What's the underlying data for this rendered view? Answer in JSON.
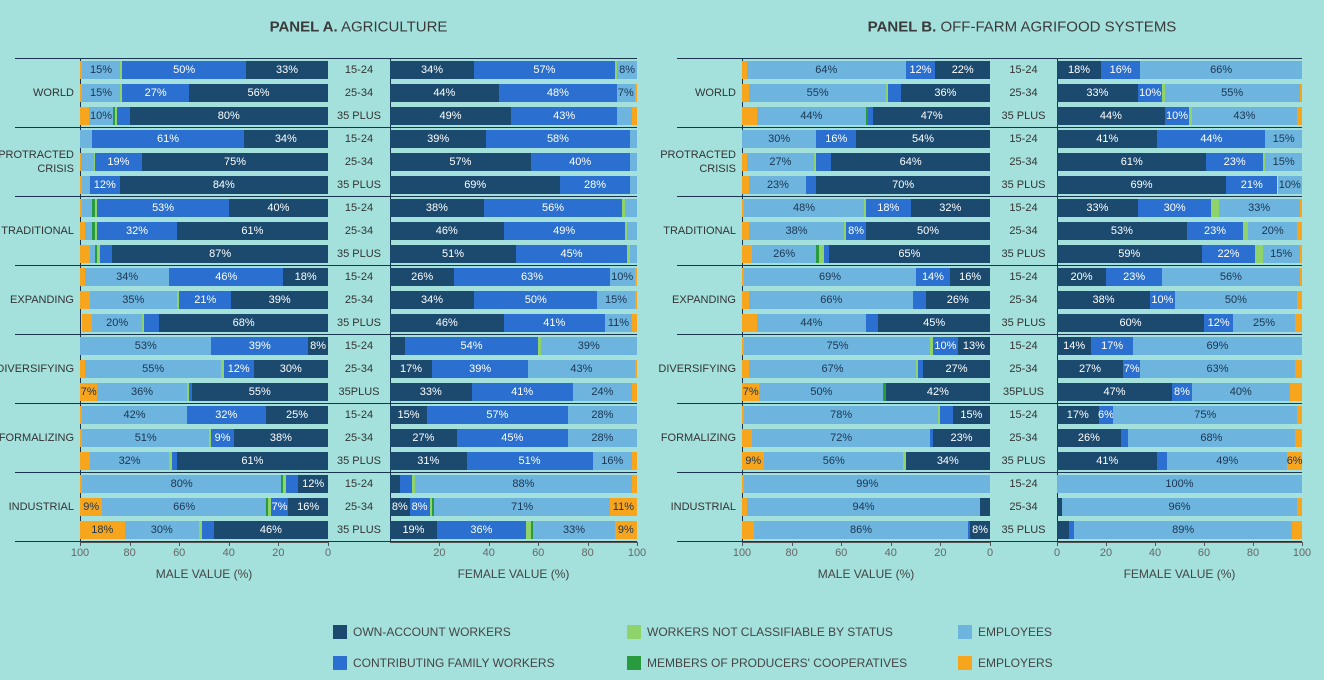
{
  "chart_data": [
    {
      "type": "bar",
      "title_prefix": "PANEL A.",
      "title": "AGRICULTURE",
      "groups": [
        "WORLD",
        "PROTRACTED CRISIS",
        "TRADITIONAL",
        "EXPANDING",
        "DIVERSIFYING",
        "FORMALIZING",
        "INDUSTRIAL"
      ],
      "categories": [
        "15-24",
        "25-34",
        "35 PLUS",
        "15-24",
        "25-34",
        "35 PLUS",
        "15-24",
        "25-34",
        "35 PLUS",
        "15-24",
        "25-34",
        "35 PLUS",
        "15-24",
        "25-34",
        "35PLUS",
        "15-24",
        "25-34",
        "35 PLUS",
        "15-24",
        "25-34",
        "35 PLUS"
      ],
      "xlabel": "MALE VALUE (%)",
      "xlim": [
        100,
        0
      ],
      "xticks": [
        100,
        80,
        60,
        40,
        20,
        0
      ],
      "series": [
        {
          "name": "OWN-ACCOUNT WORKERS",
          "color": "#1b4a6e",
          "values": [
            33,
            56,
            80,
            34,
            75,
            84,
            40,
            61,
            87,
            18,
            39,
            68,
            8,
            30,
            55,
            25,
            38,
            61,
            12,
            16,
            46
          ],
          "value_labels": [
            "33%",
            "56%",
            "80%",
            "34%",
            "75%",
            "84%",
            "40%",
            "61%",
            "87%",
            "18%",
            "39%",
            "68%",
            "8%",
            "30%",
            "55%",
            "25%",
            "38%",
            "61%",
            "12%",
            "16%",
            "46%"
          ]
        },
        {
          "name": "CONTRIBUTING FAMILY WORKERS",
          "color": "#2b6fd0",
          "values": [
            50,
            27,
            5,
            61,
            19,
            12,
            53,
            32,
            5,
            46,
            21,
            6,
            39,
            12,
            1,
            32,
            9,
            2,
            5,
            7,
            5
          ],
          "value_labels": [
            "50%",
            "27%",
            null,
            "61%",
            "19%",
            "12%",
            "53%",
            "32%",
            null,
            "46%",
            "21%",
            null,
            "39%",
            "12%",
            null,
            "32%",
            "9%",
            null,
            null,
            "7%",
            null
          ]
        },
        {
          "name": "WORKERS NOT CLASSIFIABLE BY STATUS",
          "color": "#8fd46a",
          "values": [
            1,
            1,
            1,
            0,
            0.5,
            0,
            1,
            1,
            1,
            0,
            1,
            1,
            0,
            1,
            1,
            0,
            1,
            1,
            1,
            1,
            1
          ]
        },
        {
          "name": "MEMBERS OF PRODUCERS' COOPERATIVES",
          "color": "#2a9a3e",
          "values": [
            0,
            0,
            0.5,
            0,
            0,
            0,
            1,
            1,
            1,
            0,
            0,
            0,
            0,
            0,
            0,
            0,
            0,
            0,
            1,
            1,
            0
          ]
        },
        {
          "name": "EMPLOYEES",
          "color": "#6db4de",
          "values": [
            15,
            15,
            10,
            5,
            5,
            3,
            4,
            3,
            2,
            34,
            35,
            20,
            53,
            55,
            36,
            42,
            51,
            32,
            80,
            66,
            30
          ],
          "value_labels": [
            "15%",
            "15%",
            "10%",
            null,
            null,
            null,
            null,
            null,
            null,
            "34%",
            "35%",
            "20%",
            "53%",
            "55%",
            "36%",
            "42%",
            "51%",
            "32%",
            "80%",
            "66%",
            "30%"
          ]
        },
        {
          "name": "EMPLOYERS",
          "color": "#f7a51d",
          "values": [
            1,
            1,
            3.5,
            0,
            0.5,
            1,
            1,
            2,
            4,
            2,
            4,
            4,
            0,
            2,
            7,
            1,
            1,
            4,
            1,
            9,
            18
          ],
          "value_labels": [
            null,
            null,
            null,
            null,
            null,
            null,
            null,
            null,
            null,
            null,
            null,
            null,
            null,
            null,
            "7%",
            null,
            null,
            null,
            null,
            "9%",
            "18%"
          ]
        }
      ]
    },
    {
      "type": "bar",
      "xlabel": "FEMALE VALUE (%)",
      "xlim": [
        0,
        100
      ],
      "xticks": [
        20,
        40,
        60,
        80,
        100
      ],
      "series": [
        {
          "color": "#1b4a6e",
          "values": [
            34,
            44,
            49,
            39,
            57,
            69,
            38,
            46,
            51,
            26,
            34,
            46,
            6,
            17,
            33,
            15,
            27,
            31,
            4,
            8,
            19
          ],
          "value_labels": [
            "34%",
            "44%",
            "49%",
            "39%",
            "57%",
            "69%",
            "38%",
            "46%",
            "51%",
            "26%",
            "34%",
            "46%",
            null,
            "17%",
            "33%",
            "15%",
            "27%",
            "31%",
            null,
            "8%",
            "19%"
          ]
        },
        {
          "color": "#2b6fd0",
          "values": [
            57,
            48,
            43,
            58,
            40,
            28,
            56,
            49,
            45,
            63,
            50,
            41,
            54,
            39,
            41,
            57,
            45,
            51,
            5,
            8,
            36
          ],
          "value_labels": [
            "57%",
            "48%",
            "43%",
            "58%",
            "40%",
            "28%",
            "56%",
            "49%",
            "45%",
            "63%",
            "50%",
            "41%",
            "54%",
            "39%",
            "41%",
            "57%",
            "45%",
            "51%",
            null,
            "8%",
            "36%"
          ]
        },
        {
          "color": "#8fd46a",
          "values": [
            1,
            0,
            0,
            0,
            0,
            0,
            1,
            1,
            1,
            0,
            0,
            0,
            1,
            0,
            0,
            0,
            0,
            0,
            1,
            1,
            2
          ]
        },
        {
          "color": "#2a9a3e",
          "values": [
            0,
            0,
            0,
            0,
            0,
            0,
            0,
            0,
            0,
            0,
            0,
            0,
            0,
            0,
            0,
            0,
            0,
            0,
            0,
            1,
            1
          ]
        },
        {
          "color": "#6db4de",
          "values": [
            8,
            7,
            6,
            3,
            3,
            3,
            5,
            4,
            3,
            10,
            15,
            11,
            39,
            43,
            24,
            28,
            28,
            16,
            88,
            71,
            33
          ],
          "value_labels": [
            "8%",
            "7%",
            null,
            null,
            null,
            null,
            null,
            null,
            null,
            "10%",
            "15%",
            "11%",
            "39%",
            "43%",
            "24%",
            "28%",
            "28%",
            "16%",
            "88%",
            "71%",
            "33%"
          ]
        },
        {
          "color": "#f7a51d",
          "values": [
            0,
            1,
            2,
            0,
            0,
            0,
            0,
            0,
            0,
            1,
            1,
            2,
            0,
            1,
            2,
            0,
            0,
            2,
            2,
            11,
            9
          ],
          "value_labels": [
            null,
            null,
            null,
            null,
            null,
            null,
            null,
            null,
            null,
            null,
            null,
            null,
            null,
            null,
            null,
            null,
            null,
            null,
            null,
            "11%",
            "9%"
          ]
        }
      ]
    },
    {
      "type": "bar",
      "title_prefix": "PANEL B.",
      "title": "OFF-FARM AGRIFOOD SYSTEMS",
      "groups": [
        "WORLD",
        "PROTRACTED CRISIS",
        "TRADITIONAL",
        "EXPANDING",
        "DIVERSIFYING",
        "FORMALIZING",
        "INDUSTRIAL"
      ],
      "categories": [
        "15-24",
        "25-34",
        "35 PLUS",
        "15-24",
        "25-34",
        "35 PLUS",
        "15-24",
        "25-34",
        "35 PLUS",
        "15-24",
        "25-34",
        "35 PLUS",
        "15-24",
        "25-34",
        "35PLUS",
        "15-24",
        "25-34",
        "35 PLUS",
        "15-24",
        "25-34",
        "35 PLUS"
      ],
      "xlabel": "MALE VALUE (%)",
      "xlim": [
        100,
        0
      ],
      "xticks": [
        100,
        80,
        60,
        40,
        20,
        0
      ],
      "series": [
        {
          "color": "#1b4a6e",
          "values": [
            22,
            36,
            47,
            54,
            64,
            70,
            32,
            50,
            65,
            16,
            26,
            45,
            13,
            27,
            42,
            15,
            23,
            34,
            0,
            4,
            8
          ],
          "value_labels": [
            "22%",
            "36%",
            "47%",
            "54%",
            "64%",
            "70%",
            "32%",
            "50%",
            "65%",
            "16%",
            "26%",
            "45%",
            "13%",
            "27%",
            "42%",
            "15%",
            "23%",
            "34%",
            null,
            null,
            "8%"
          ]
        },
        {
          "color": "#2b6fd0",
          "values": [
            12,
            5,
            2,
            16,
            6,
            4,
            18,
            8,
            2,
            14,
            5,
            5,
            10,
            2,
            0,
            5,
            1,
            0,
            0,
            0,
            1
          ],
          "value_labels": [
            "12%",
            null,
            null,
            "16%",
            null,
            null,
            "18%",
            "8%",
            null,
            "14%",
            null,
            null,
            "10%",
            null,
            null,
            null,
            null,
            null,
            null,
            null,
            null
          ]
        },
        {
          "color": "#8fd46a",
          "values": [
            0,
            1,
            0,
            0,
            1,
            0,
            1,
            1,
            2,
            0,
            0,
            0,
            1,
            1,
            0,
            1,
            0,
            1,
            0,
            0,
            0
          ]
        },
        {
          "color": "#2a9a3e",
          "values": [
            0,
            0,
            1,
            0,
            0,
            0,
            0,
            0,
            1,
            0,
            0,
            0,
            0,
            0,
            1,
            0,
            0,
            0,
            0,
            0,
            0
          ]
        },
        {
          "color": "#6db4de",
          "values": [
            64,
            55,
            44,
            30,
            27,
            23,
            48,
            38,
            26,
            69,
            66,
            44,
            75,
            67,
            50,
            78,
            72,
            56,
            99,
            94,
            86
          ],
          "value_labels": [
            "64%",
            "55%",
            "44%",
            "30%",
            "27%",
            "23%",
            "48%",
            "38%",
            "26%",
            "69%",
            "66%",
            "44%",
            "75%",
            "67%",
            "50%",
            "78%",
            "72%",
            "56%",
            "99%",
            "94%",
            "86%"
          ]
        },
        {
          "color": "#f7a51d",
          "values": [
            2,
            3,
            6,
            0,
            2,
            3,
            1,
            3,
            4,
            1,
            3,
            6,
            1,
            3,
            7,
            1,
            4,
            9,
            1,
            2,
            5
          ],
          "value_labels": [
            null,
            null,
            null,
            null,
            null,
            null,
            null,
            null,
            null,
            null,
            null,
            null,
            null,
            null,
            "7%",
            null,
            null,
            "9%",
            null,
            null,
            null
          ]
        }
      ]
    },
    {
      "type": "bar",
      "xlabel": "FEMALE VALUE (%)",
      "xlim": [
        0,
        100
      ],
      "xticks": [
        0,
        20,
        40,
        60,
        80,
        100
      ],
      "series": [
        {
          "color": "#1b4a6e",
          "values": [
            18,
            33,
            44,
            41,
            61,
            69,
            33,
            53,
            59,
            20,
            38,
            60,
            14,
            27,
            47,
            17,
            26,
            41,
            0,
            2,
            5
          ],
          "value_labels": [
            "18%",
            "33%",
            "44%",
            "41%",
            "61%",
            "69%",
            "33%",
            "53%",
            "59%",
            "20%",
            "38%",
            "60%",
            "14%",
            "27%",
            "47%",
            "17%",
            "26%",
            "41%",
            null,
            null,
            null
          ]
        },
        {
          "color": "#2b6fd0",
          "values": [
            16,
            10,
            10,
            44,
            23,
            21,
            30,
            23,
            22,
            23,
            10,
            12,
            17,
            7,
            8,
            6,
            3,
            4,
            0,
            0,
            2
          ],
          "value_labels": [
            "16%",
            "10%",
            "10%",
            "44%",
            "23%",
            "21%",
            "30%",
            "23%",
            "22%",
            "23%",
            "10%",
            "12%",
            "17%",
            "7%",
            "8%",
            "6%",
            null,
            null,
            null,
            null,
            null
          ]
        },
        {
          "color": "#8fd46a",
          "values": [
            0,
            1,
            1,
            0,
            1,
            0,
            3,
            2,
            3,
            0,
            0,
            0,
            0,
            0,
            0,
            0,
            0,
            0,
            0,
            0,
            0
          ]
        },
        {
          "color": "#2a9a3e",
          "values": [
            0,
            0,
            0,
            0,
            0,
            0,
            0,
            0,
            0,
            0,
            0,
            0,
            0,
            0,
            0,
            0,
            0,
            0,
            0,
            0,
            0
          ]
        },
        {
          "color": "#6db4de",
          "values": [
            66,
            55,
            43,
            15,
            15,
            10,
            33,
            20,
            15,
            56,
            50,
            25,
            69,
            63,
            40,
            75,
            68,
            49,
            100,
            96,
            89
          ],
          "value_labels": [
            "66%",
            "55%",
            "43%",
            "15%",
            "15%",
            "10%",
            "33%",
            "20%",
            "15%",
            "56%",
            "50%",
            "25%",
            "69%",
            "63%",
            "40%",
            "75%",
            "68%",
            "49%",
            "100%",
            "96%",
            "89%"
          ]
        },
        {
          "color": "#f7a51d",
          "values": [
            0,
            1,
            2,
            0,
            0,
            0,
            1,
            2,
            1,
            1,
            2,
            3,
            0,
            3,
            5,
            2,
            3,
            6,
            0,
            2,
            4
          ],
          "value_labels": [
            null,
            null,
            null,
            null,
            null,
            null,
            null,
            null,
            null,
            null,
            null,
            null,
            null,
            null,
            null,
            null,
            null,
            "6%",
            null,
            null,
            null
          ]
        }
      ]
    }
  ]
}
